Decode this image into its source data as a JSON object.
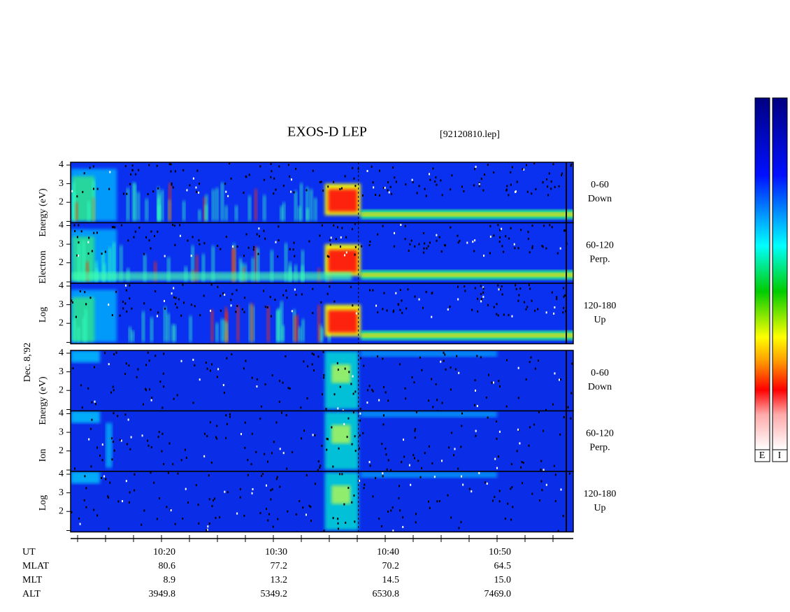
{
  "title": "EXOS-D LEP",
  "file": "[92120810.lep]",
  "date": "Dec. 8,'92",
  "groups": [
    {
      "axis_label": [
        "Log",
        "Electron",
        "Energy (eV)"
      ],
      "panels": [
        {
          "range": "0-60",
          "direction": "Down",
          "yticks": [
            2,
            3,
            4
          ]
        },
        {
          "range": "60-120",
          "direction": "Perp.",
          "yticks": [
            2,
            3,
            4
          ]
        },
        {
          "range": "120-180",
          "direction": "Up",
          "yticks": [
            2,
            3,
            4
          ]
        }
      ]
    },
    {
      "axis_label": [
        "Log",
        "Ion",
        "Energy (eV)"
      ],
      "panels": [
        {
          "range": "0-60",
          "direction": "Down",
          "yticks": [
            2,
            3,
            4
          ]
        },
        {
          "range": "60-120",
          "direction": "Perp.",
          "yticks": [
            2,
            3,
            4
          ]
        },
        {
          "range": "120-180",
          "direction": "Up",
          "yticks": [
            2,
            3,
            4
          ]
        }
      ]
    }
  ],
  "ylim": [
    0.9,
    4.15
  ],
  "rows": [
    {
      "label": "UT",
      "values": [
        "10:20",
        "10:30",
        "10:40",
        "10:50"
      ]
    },
    {
      "label": "MLAT",
      "values": [
        "80.6",
        "77.2",
        "70.2",
        "64.5"
      ]
    },
    {
      "label": "MLT",
      "values": [
        "8.9",
        "13.2",
        "14.5",
        "15.0"
      ]
    },
    {
      "label": "ALT",
      "values": [
        "3949.8",
        "5349.2",
        "6530.8",
        "7469.0"
      ]
    }
  ],
  "colorbar": [
    "E",
    "I"
  ]
}
